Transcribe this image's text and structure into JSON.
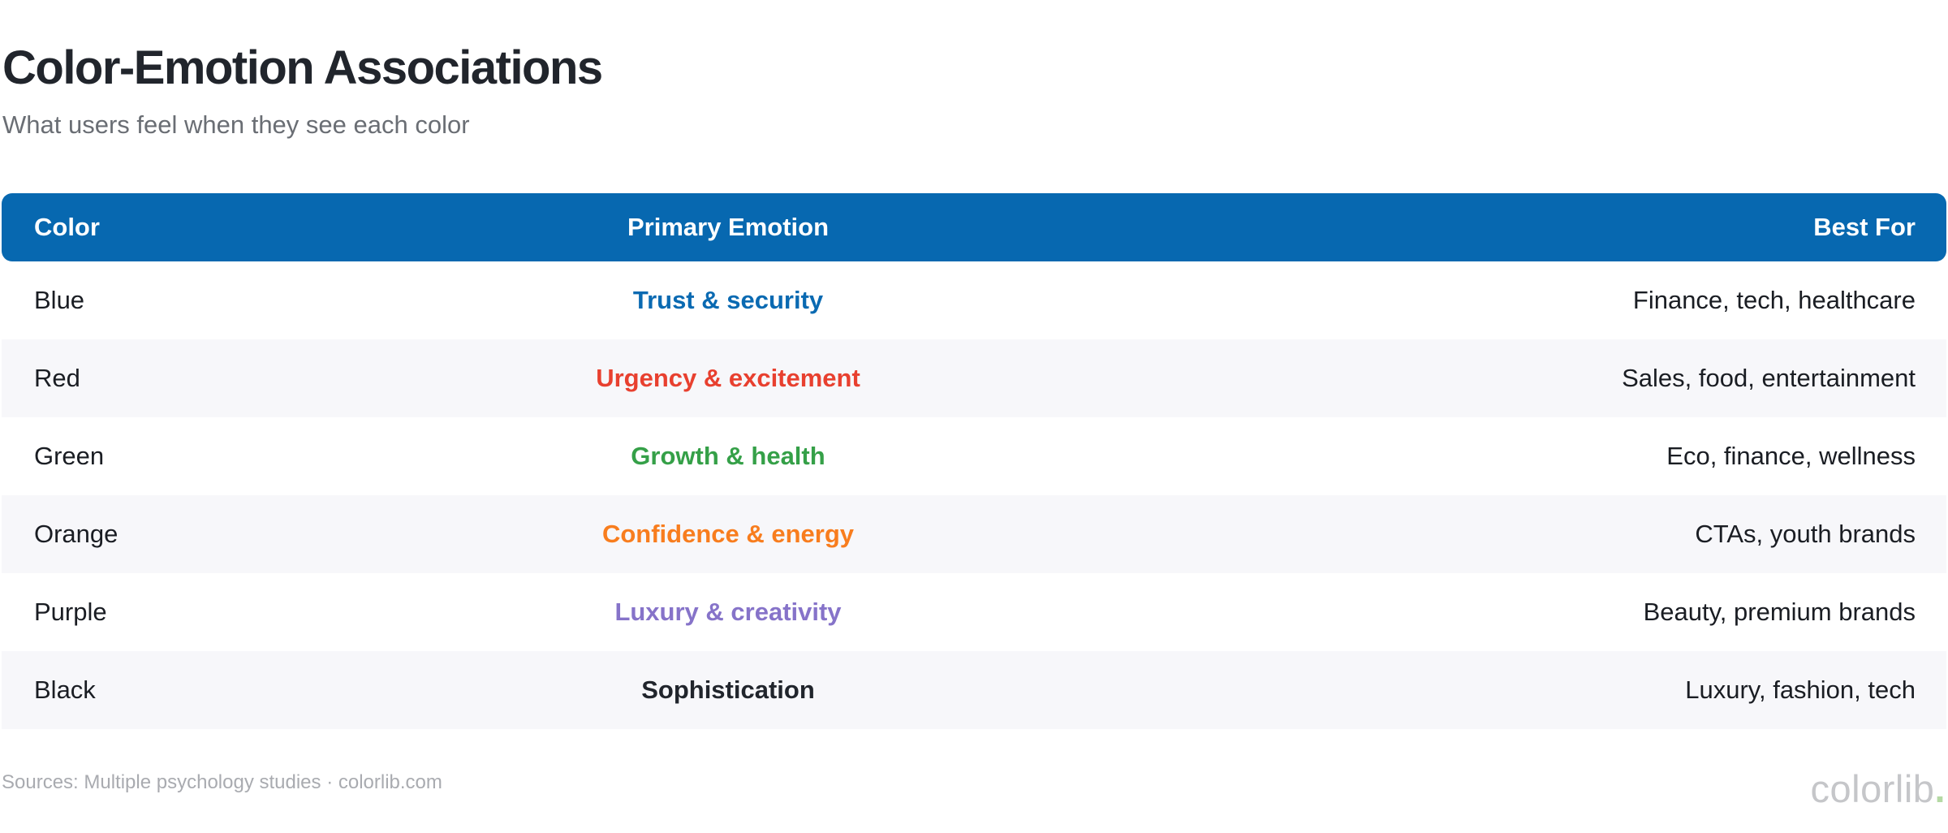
{
  "page": {
    "title": "Color-Emotion Associations",
    "subtitle": "What users feel when they see each color",
    "source_note": "Sources: Multiple psychology studies · colorlib.com",
    "watermark_text": "colorlib",
    "watermark_dot": "."
  },
  "theme": {
    "header_bg": "#0768b0",
    "header_text": "#ffffff",
    "alt_row_bg": "#f7f7fa",
    "body_text": "#1a1d23",
    "title_text": "#21252c",
    "subtitle_text": "#6a6e74",
    "source_text": "#a9abb0",
    "watermark_text_color": "#c5c6c9",
    "watermark_dot_color": "#b5d9a4"
  },
  "chart_data": {
    "type": "table",
    "title": "Color-Emotion Associations",
    "subtitle": "What users feel when they see each color",
    "columns": [
      "Color",
      "Primary Emotion",
      "Best For"
    ],
    "rows": [
      {
        "color": "Blue",
        "emotion": "Trust & security",
        "emotion_color": "#0a6ab2",
        "best_for": "Finance, tech, healthcare"
      },
      {
        "color": "Red",
        "emotion": "Urgency & excitement",
        "emotion_color": "#e8402f",
        "best_for": "Sales, food, entertainment"
      },
      {
        "color": "Green",
        "emotion": "Growth & health",
        "emotion_color": "#35a048",
        "best_for": "Eco, finance, wellness"
      },
      {
        "color": "Orange",
        "emotion": "Confidence & energy",
        "emotion_color": "#f87d1e",
        "best_for": "CTAs, youth brands"
      },
      {
        "color": "Purple",
        "emotion": "Luxury & creativity",
        "emotion_color": "#8673c9",
        "best_for": "Beauty, premium brands"
      },
      {
        "color": "Black",
        "emotion": "Sophistication",
        "emotion_color": "#21252c",
        "best_for": "Luxury, fashion, tech"
      }
    ]
  }
}
